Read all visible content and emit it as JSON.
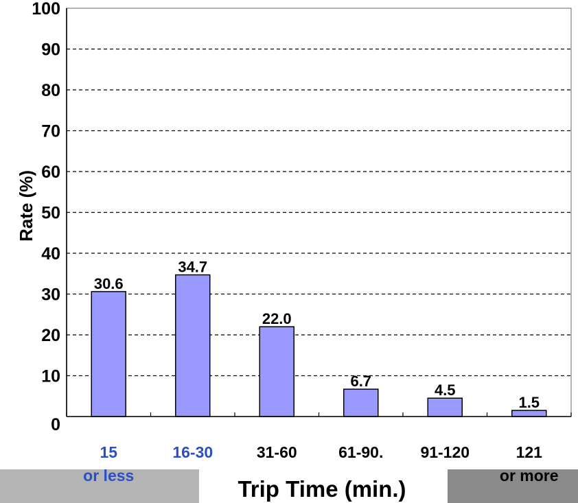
{
  "chart_data": {
    "type": "bar",
    "xlabel": "Trip Time (min.)",
    "ylabel": "Rate (%)",
    "ylim": [
      0,
      100
    ],
    "yticks": [
      "0",
      "10",
      "20",
      "30",
      "40",
      "50",
      "60",
      "70",
      "80",
      "90",
      "100"
    ],
    "grid": "horizontal dashed",
    "categories": [
      [
        "15",
        "or less"
      ],
      [
        "16-30"
      ],
      [
        "31-60"
      ],
      [
        "61-90."
      ],
      [
        "91-120"
      ],
      [
        "121",
        "or more"
      ]
    ],
    "values": [
      30.6,
      34.7,
      22.0,
      6.7,
      4.5,
      1.5
    ],
    "value_labels": [
      "30.6",
      "34.7",
      "22.0",
      "6.7",
      "4.5",
      "1.5"
    ],
    "category_colors": [
      "#2a4fc6",
      "#2a4fc6",
      "#000000",
      "#000000",
      "#000000",
      "#000000"
    ],
    "colors": {
      "bar_fill": "#9999ff",
      "bar_stroke": "#000000",
      "grid": "#000000",
      "plot_border": "#808080",
      "footer_band": "#b4b4b4",
      "footer_band_right": "#8a8a8a"
    }
  }
}
